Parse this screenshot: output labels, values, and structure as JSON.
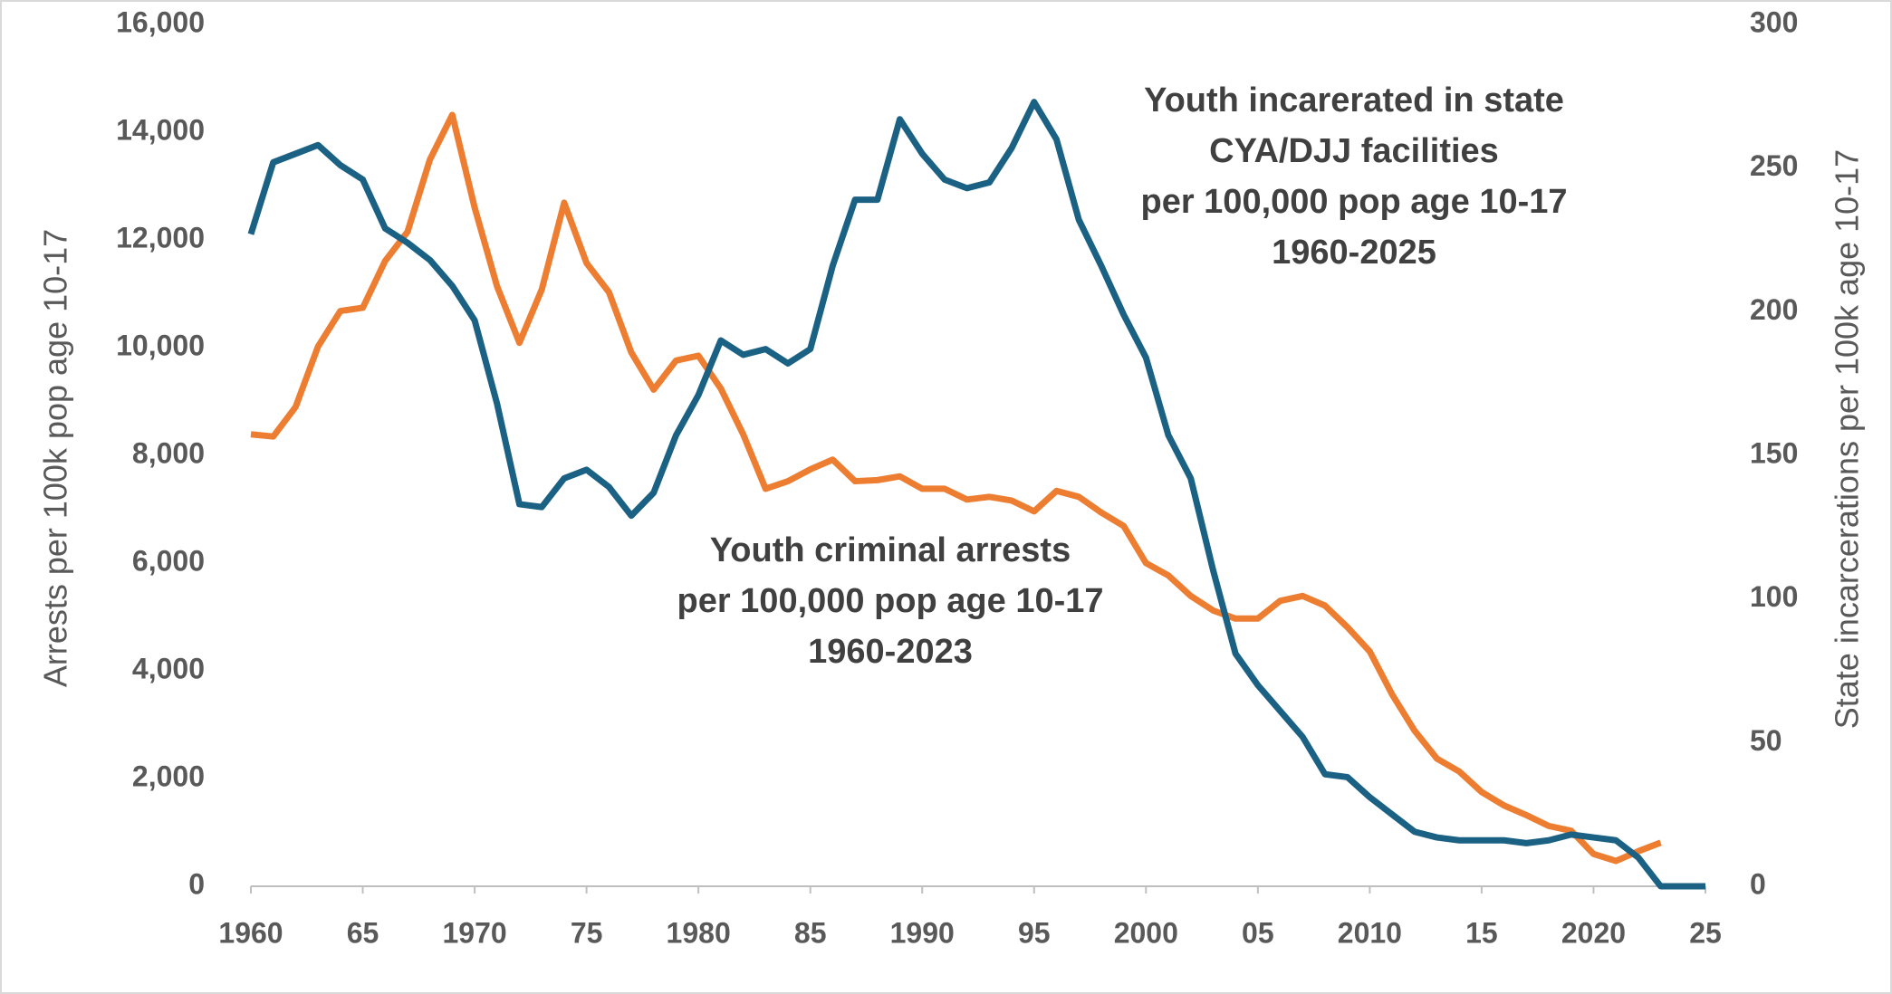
{
  "chart_data": {
    "type": "line",
    "x": [
      1960,
      1961,
      1962,
      1963,
      1964,
      1965,
      1966,
      1967,
      1968,
      1969,
      1970,
      1971,
      1972,
      1973,
      1974,
      1975,
      1976,
      1977,
      1978,
      1979,
      1980,
      1981,
      1982,
      1983,
      1984,
      1985,
      1986,
      1987,
      1988,
      1989,
      1990,
      1991,
      1992,
      1993,
      1994,
      1995,
      1996,
      1997,
      1998,
      1999,
      2000,
      2001,
      2002,
      2003,
      2004,
      2005,
      2006,
      2007,
      2008,
      2009,
      2010,
      2011,
      2012,
      2013,
      2014,
      2015,
      2016,
      2017,
      2018,
      2019,
      2020,
      2021,
      2022,
      2023,
      2024,
      2025
    ],
    "series": [
      {
        "name": "Youth criminal arrests",
        "color": "#ed7d31",
        "axis": "y",
        "values": [
          8390,
          8350,
          8900,
          10020,
          10680,
          10740,
          11610,
          12150,
          13490,
          14320,
          12600,
          11140,
          10090,
          11080,
          12690,
          11570,
          11030,
          9910,
          9220,
          9760,
          9850,
          9240,
          8390,
          7380,
          7520,
          7740,
          7920,
          7520,
          7540,
          7610,
          7380,
          7380,
          7180,
          7230,
          7160,
          6960,
          7340,
          7230,
          6940,
          6690,
          6000,
          5770,
          5390,
          5120,
          4970,
          4970,
          5300,
          5390,
          5210,
          4810,
          4360,
          3560,
          2890,
          2370,
          2130,
          1750,
          1500,
          1320,
          1120,
          1030,
          600,
          470,
          650,
          810,
          null,
          null
        ]
      },
      {
        "name": "Youth incarerated in state CYA/DJJ facilities",
        "color": "#1b6184",
        "axis": "y2",
        "values": [
          227,
          252,
          255,
          258,
          251,
          246,
          229,
          224,
          218,
          209,
          197,
          168,
          133,
          132,
          142,
          145,
          139,
          129,
          137,
          157,
          171,
          190,
          185,
          187,
          182,
          187,
          216,
          239,
          239,
          267,
          255,
          246,
          243,
          245,
          257,
          273,
          260,
          232,
          216,
          199,
          184,
          157,
          142,
          110,
          81,
          70,
          61,
          52,
          39,
          38,
          31,
          25,
          19,
          17,
          16,
          16,
          16,
          15,
          16,
          18,
          17,
          16,
          10,
          0,
          0,
          0
        ]
      }
    ],
    "annotations": [
      [
        "Youth incarerated in state",
        "CYA/DJJ facilities",
        "per 100,000 pop age 10-17",
        "1960-2025"
      ],
      [
        "Youth criminal arrests",
        "per 100,000 pop age 10-17",
        "1960-2023"
      ]
    ],
    "ylabel": "Arrests per 100k pop age 10-17",
    "y2label": "State incarcerations per 100k age 10-17",
    "xlim": [
      1960,
      2025
    ],
    "xticks": [
      1960,
      {
        "value": 1965,
        "label": "65"
      },
      1970,
      {
        "value": 1975,
        "label": "75"
      },
      1980,
      {
        "value": 1985,
        "label": "85"
      },
      1990,
      {
        "value": 1995,
        "label": "95"
      },
      2000,
      {
        "value": 2005,
        "label": "05"
      },
      2010,
      {
        "value": 2015,
        "label": "15"
      },
      2020,
      {
        "value": 2025,
        "label": "25"
      }
    ],
    "ylim": [
      0,
      16000
    ],
    "yticks": [
      0,
      {
        "value": 2000,
        "label": "2,000"
      },
      {
        "value": 4000,
        "label": "4,000"
      },
      {
        "value": 6000,
        "label": "6,000"
      },
      {
        "value": 8000,
        "label": "8,000"
      },
      {
        "value": 10000,
        "label": "10,000"
      },
      {
        "value": 12000,
        "label": "12,000"
      },
      {
        "value": 14000,
        "label": "14,000"
      },
      {
        "value": 16000,
        "label": "16,000"
      }
    ],
    "y2lim": [
      0,
      300
    ],
    "y2ticks": [
      0,
      50,
      100,
      150,
      200,
      250,
      300
    ],
    "grid": false
  }
}
